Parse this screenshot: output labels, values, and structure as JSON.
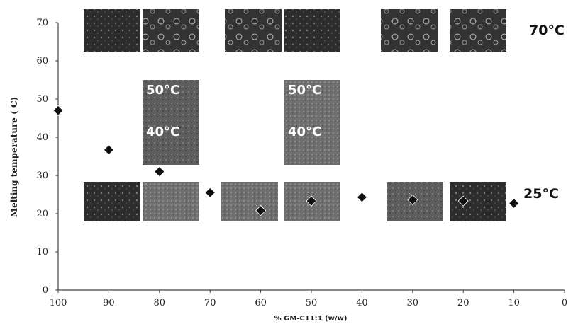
{
  "chart_data": {
    "type": "scatter",
    "title": "",
    "xlabel": "% GM-C11:1 (w/w)",
    "ylabel": "Melting temperature ( C)",
    "xlim": [
      100,
      0
    ],
    "ylim": [
      0,
      70
    ],
    "x_reversed": true,
    "x_ticks": [
      "100",
      "90",
      "80",
      "70",
      "60",
      "50",
      "40",
      "30",
      "20",
      "10",
      "0"
    ],
    "y_ticks": [
      "0",
      "10",
      "20",
      "30",
      "40",
      "50",
      "60",
      "70"
    ],
    "grid": false,
    "marker": "diamond",
    "marker_color": "#111111",
    "points": [
      {
        "x": 100,
        "y": 47.0
      },
      {
        "x": 90,
        "y": 36.7
      },
      {
        "x": 80,
        "y": 31.0
      },
      {
        "x": 70,
        "y": 25.5
      },
      {
        "x": 60,
        "y": 20.8
      },
      {
        "x": 50,
        "y": 23.3
      },
      {
        "x": 40,
        "y": 24.3
      },
      {
        "x": 30,
        "y": 23.6
      },
      {
        "x": 20,
        "y": 23.3
      },
      {
        "x": 10,
        "y": 22.7
      }
    ],
    "annotations": {
      "temp_70": "70°C",
      "temp_25": "25°C",
      "inset_50": "50°C",
      "inset_40": "40°C"
    }
  },
  "colors": {
    "micrograph_dark": "#2a2a2a",
    "micrograph_mid": "#6b6b6b",
    "axis": "#444444"
  }
}
